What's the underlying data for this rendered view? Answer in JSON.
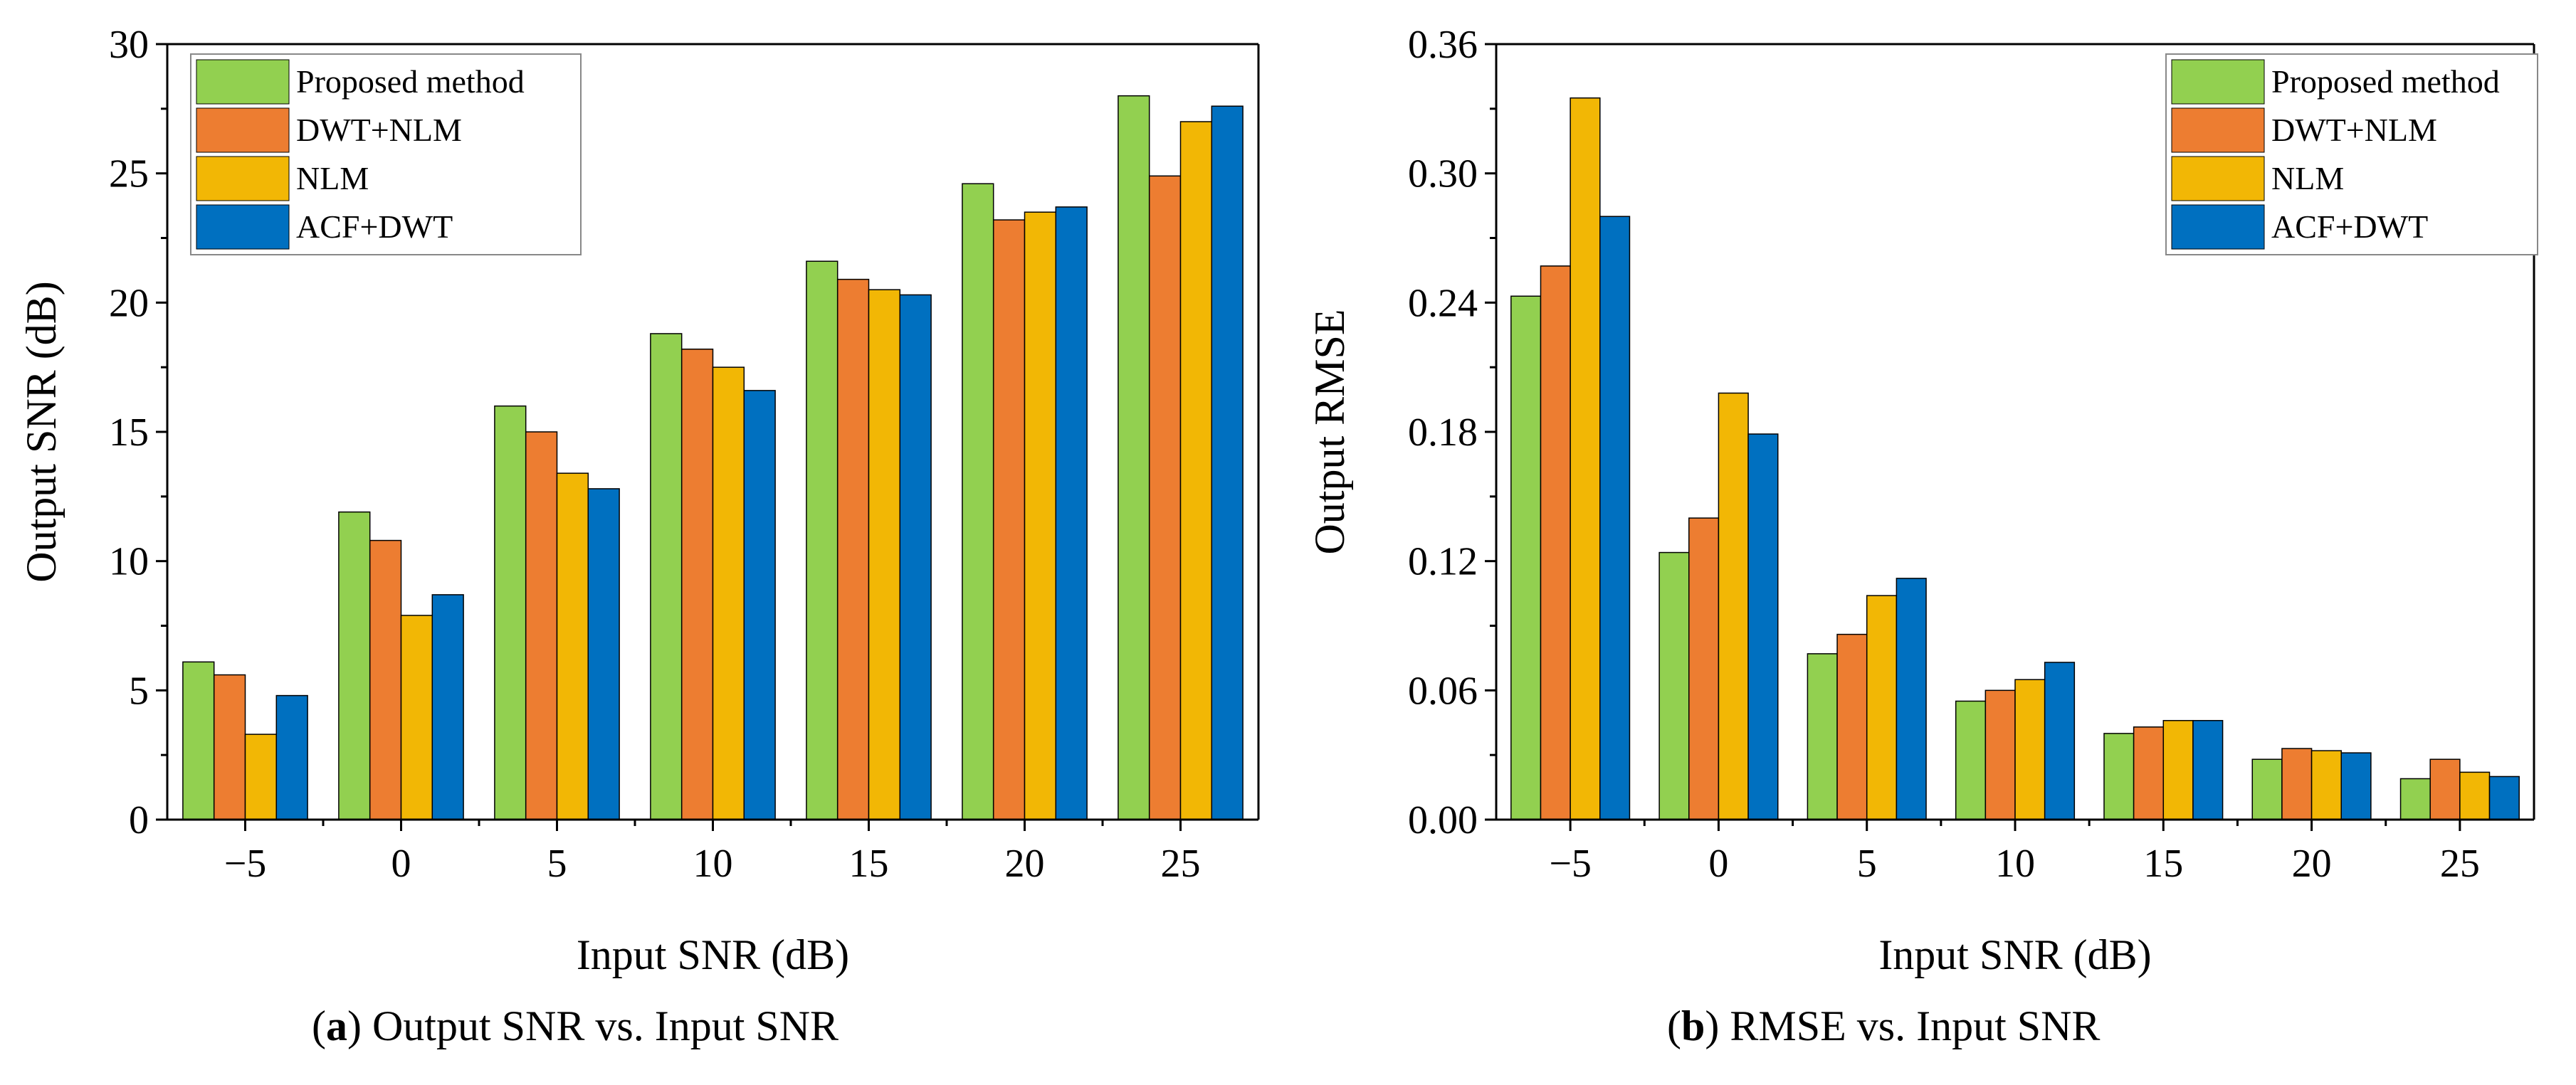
{
  "figure": {
    "captions": [
      {
        "letter": "a",
        "text": "Output SNR vs. Input SNR"
      },
      {
        "letter": "b",
        "text": "RMSE vs. Input SNR"
      }
    ]
  },
  "colors": {
    "Proposed method": "#92D050",
    "DWT+NLM": "#ED7D31",
    "NLM": "#F2B705",
    "ACF+DWT": "#0070C0"
  },
  "chart_data": [
    {
      "type": "bar",
      "categories": [
        "−5",
        "0",
        "5",
        "10",
        "15",
        "20",
        "25"
      ],
      "series": [
        {
          "name": "Proposed method",
          "values": [
            6.1,
            11.9,
            16.0,
            18.8,
            21.6,
            24.6,
            28.0
          ]
        },
        {
          "name": "DWT+NLM",
          "values": [
            5.6,
            10.8,
            15.0,
            18.2,
            20.9,
            23.2,
            24.9
          ]
        },
        {
          "name": "NLM",
          "values": [
            3.3,
            7.9,
            13.4,
            17.5,
            20.5,
            23.5,
            27.0
          ]
        },
        {
          "name": "ACF+DWT",
          "values": [
            4.8,
            8.7,
            12.8,
            16.6,
            20.3,
            23.7,
            27.6
          ]
        }
      ],
      "title": "",
      "xlabel": "Input SNR (dB)",
      "ylabel": "Output SNR (dB)",
      "ylim": [
        0,
        30
      ],
      "yticks": [
        "0",
        "5",
        "10",
        "15",
        "20",
        "25",
        "30"
      ],
      "legend_position": "top-left"
    },
    {
      "type": "bar",
      "categories": [
        "−5",
        "0",
        "5",
        "10",
        "15",
        "20",
        "25"
      ],
      "series": [
        {
          "name": "Proposed method",
          "values": [
            0.243,
            0.124,
            0.077,
            0.055,
            0.04,
            0.028,
            0.019
          ]
        },
        {
          "name": "DWT+NLM",
          "values": [
            0.257,
            0.14,
            0.086,
            0.06,
            0.043,
            0.033,
            0.028
          ]
        },
        {
          "name": "NLM",
          "values": [
            0.335,
            0.198,
            0.104,
            0.065,
            0.046,
            0.032,
            0.022
          ]
        },
        {
          "name": "ACF+DWT",
          "values": [
            0.28,
            0.179,
            0.112,
            0.073,
            0.046,
            0.031,
            0.02
          ]
        }
      ],
      "title": "",
      "xlabel": "Input SNR (dB)",
      "ylabel": "Output RMSE",
      "ylim": [
        0,
        0.36
      ],
      "yticks": [
        "0.00",
        "0.06",
        "0.12",
        "0.18",
        "0.24",
        "0.30",
        "0.36"
      ],
      "legend_position": "top-right"
    }
  ]
}
